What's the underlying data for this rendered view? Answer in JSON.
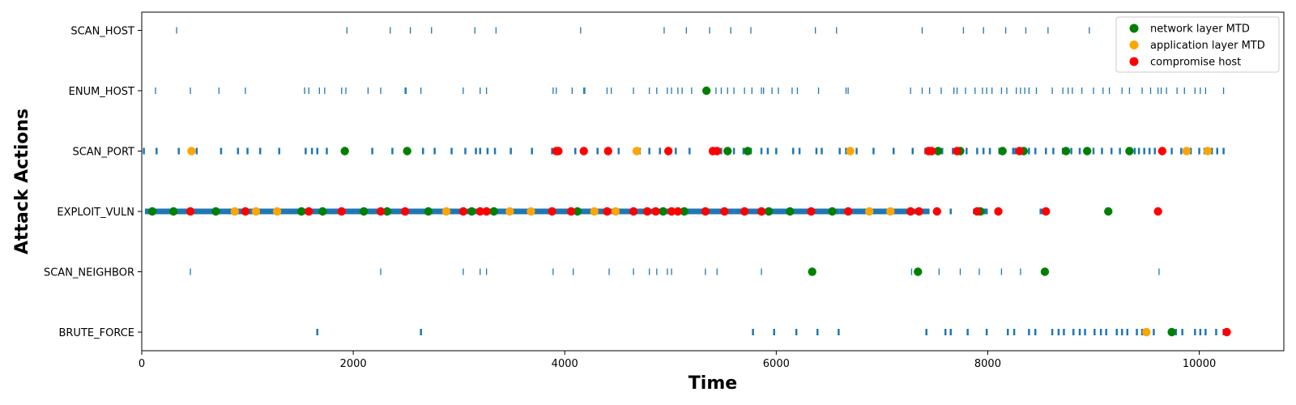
{
  "chart_data": {
    "type": "scatter",
    "title": "",
    "xlabel": "Time",
    "ylabel": "Attack Actions",
    "xlim": [
      0,
      10800
    ],
    "x_ticks": [
      0,
      2000,
      4000,
      6000,
      8000,
      10000
    ],
    "categories": [
      "BRUTE_FORCE",
      "SCAN_NEIGHBOR",
      "EXPLOIT_VULN",
      "SCAN_PORT",
      "ENUM_HOST",
      "SCAN_HOST"
    ],
    "grid": false,
    "legend_position": "top-right",
    "action_color": "#1f77b4",
    "actions": {
      "SCAN_HOST": [
        330,
        1940,
        2350,
        2540,
        2740,
        3150,
        3350,
        4150,
        4940,
        5150,
        5370,
        5570,
        5760,
        6370,
        6570,
        7380,
        7770,
        7960,
        8170,
        8360,
        8570,
        8960
      ],
      "ENUM_HOST": [
        130,
        460,
        730,
        980,
        1540,
        1580,
        1680,
        1730,
        1890,
        1930,
        2140,
        2260,
        2490,
        2500,
        2640,
        3040,
        3200,
        3260,
        3890,
        3920,
        4070,
        4180,
        4190,
        4400,
        4440,
        4650,
        4800,
        4870,
        4970,
        5010,
        5070,
        5110,
        5200,
        5330,
        5430,
        5480,
        5540,
        5600,
        5700,
        5770,
        5860,
        5880,
        5960,
        6020,
        6150,
        6200,
        6400,
        6660,
        6680,
        7270,
        7380,
        7450,
        7560,
        7680,
        7710,
        7790,
        7880,
        7950,
        7990,
        8040,
        8130,
        8180,
        8270,
        8310,
        8350,
        8390,
        8460,
        8610,
        8710,
        8760,
        8800,
        8890,
        9000,
        9090,
        9150,
        9270,
        9340,
        9460,
        9540,
        9610,
        9640,
        9690,
        9790,
        9860,
        9960,
        10010,
        10060,
        10230
      ],
      "SCAN_PORT": [
        20,
        140,
        350,
        520,
        750,
        910,
        1000,
        1120,
        1300,
        1550,
        1610,
        1660,
        1750,
        1940,
        2180,
        2370,
        2510,
        2660,
        2770,
        2930,
        3060,
        3160,
        3200,
        3270,
        3340,
        3490,
        3690,
        3880,
        3940,
        4100,
        4200,
        4310,
        4400,
        4510,
        4710,
        4800,
        4900,
        5050,
        5180,
        5420,
        5480,
        5600,
        5690,
        5760,
        5860,
        5920,
        6000,
        6160,
        6220,
        6380,
        6430,
        6600,
        6660,
        6760,
        6920,
        7110,
        7290,
        7410,
        7570,
        7670,
        7740,
        7800,
        7900,
        7960,
        8020,
        8110,
        8240,
        8260,
        8390,
        8450,
        8550,
        8620,
        8710,
        8790,
        8870,
        9000,
        9080,
        9170,
        9250,
        9390,
        9430,
        9480,
        9530,
        9580,
        9640,
        9740,
        9830,
        9920,
        10000,
        10050,
        10120,
        10170,
        10230
      ],
      "EXPLOIT_VULN": [
        {
          "start": 30,
          "end": 1500
        },
        {
          "start": 1500,
          "end": 2300
        },
        {
          "start": 2300,
          "end": 3600
        },
        {
          "start": 3600,
          "end": 4700
        },
        {
          "start": 4700,
          "end": 5600
        },
        {
          "start": 5600,
          "end": 6600
        },
        {
          "start": 6600,
          "end": 7450
        },
        {
          "start": 7500,
          "end": 7520
        },
        {
          "start": 7640,
          "end": 7660
        },
        {
          "start": 7860,
          "end": 8000
        },
        {
          "start": 8070,
          "end": 8120
        },
        {
          "start": 8490,
          "end": 8580
        }
      ],
      "SCAN_NEIGHBOR": [
        460,
        2260,
        3040,
        3200,
        3260,
        3890,
        4080,
        4420,
        4650,
        4800,
        4870,
        4970,
        5010,
        5330,
        5440,
        5860,
        7280,
        7540,
        7740,
        7920,
        8130,
        8310,
        9620
      ],
      "BRUTE_FORCE": [
        1660,
        2640,
        5780,
        5980,
        6190,
        6390,
        6590,
        7420,
        7600,
        7650,
        7810,
        7990,
        8190,
        8250,
        8390,
        8450,
        8610,
        8670,
        8720,
        8810,
        8870,
        8920,
        9010,
        9070,
        9120,
        9220,
        9270,
        9320,
        9410,
        9460,
        9570,
        9720,
        9780,
        9840,
        9960,
        10010,
        10060,
        10160,
        10230
      ]
    },
    "series": [
      {
        "name": "network layer MTD",
        "color": "#008000",
        "points": {
          "SCAN_PORT": [
            1920,
            2510,
            5540,
            5730,
            7530,
            7740,
            8140,
            8340,
            8740,
            8940,
            9340
          ],
          "EXPLOIT_VULN": [
            100,
            300,
            700,
            1510,
            1710,
            2100,
            2320,
            2710,
            3120,
            3330,
            4120,
            4930,
            5130,
            5930,
            6130,
            6530,
            7930,
            9140
          ],
          "SCAN_NEIGHBOR": [
            6340,
            7340,
            8540
          ],
          "BRUTE_FORCE": [
            9740
          ],
          "ENUM_HOST": [
            5340
          ]
        }
      },
      {
        "name": "application layer MTD",
        "color": "#ffa500",
        "points": {
          "SCAN_PORT": [
            470,
            4680,
            6700,
            9880,
            10080
          ],
          "EXPLOIT_VULN": [
            880,
            1080,
            1280,
            2880,
            3480,
            3680,
            4280,
            4480,
            6880,
            7080
          ],
          "BRUTE_FORCE": [
            9500
          ]
        }
      },
      {
        "name": "compromise host",
        "color": "#ff0000",
        "points": {
          "SCAN_PORT": [
            3920,
            3940,
            4180,
            4410,
            4980,
            5400,
            5440,
            7440,
            7470,
            7710,
            8300,
            9650
          ],
          "EXPLOIT_VULN": [
            460,
            980,
            1580,
            1890,
            2260,
            2490,
            3040,
            3200,
            3260,
            3880,
            4060,
            4400,
            4650,
            4780,
            4860,
            5010,
            5070,
            5330,
            5510,
            5700,
            5860,
            6330,
            6680,
            7270,
            7350,
            7520,
            7900,
            8100,
            8550,
            9610
          ],
          "BRUTE_FORCE": [
            10260
          ]
        }
      }
    ]
  }
}
